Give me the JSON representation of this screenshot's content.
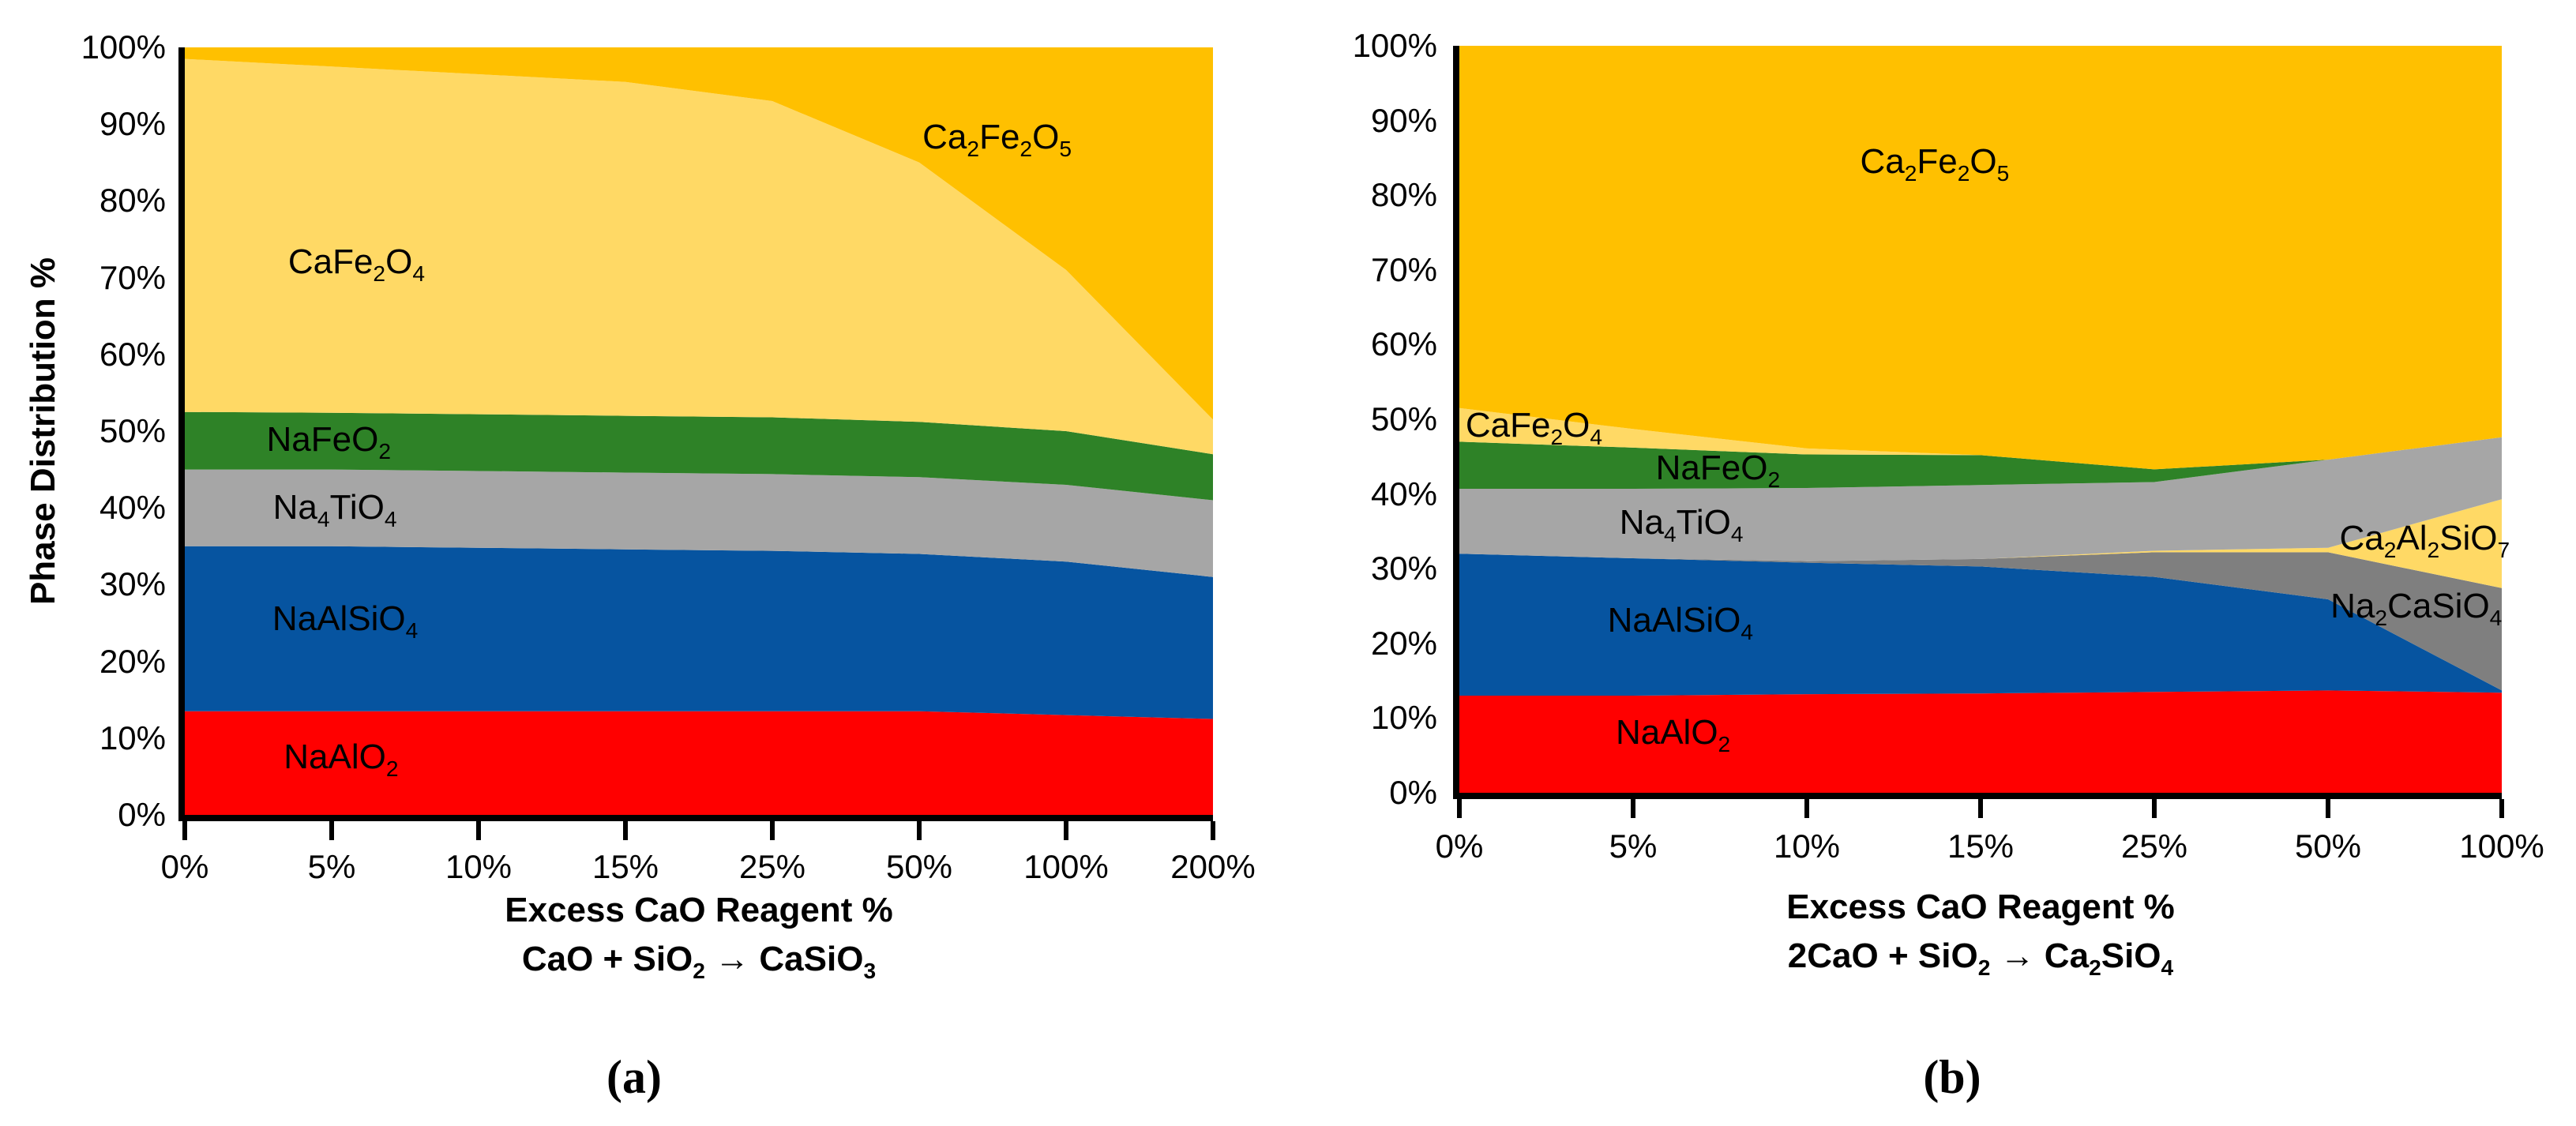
{
  "figure": {
    "background": "#FFFFFF",
    "text_color": "#000000",
    "axis_color": "#000000",
    "y_axis_title": "Phase Distribution %",
    "caption_a": "(a)",
    "caption_b": "(b)"
  },
  "chart_data": [
    {
      "id": "a",
      "type": "area",
      "stacked": true,
      "x_title": "Excess CaO Reagent %",
      "x_subtitle": "CaO + SiO2 → CaSiO3",
      "ylabel": "Phase Distribution %",
      "ylim": [
        0,
        100
      ],
      "grid": false,
      "legend_position": "labels-inside-plot",
      "y_ticks": [
        "0%",
        "10%",
        "20%",
        "30%",
        "40%",
        "50%",
        "60%",
        "70%",
        "80%",
        "90%",
        "100%"
      ],
      "categories": [
        "0%",
        "5%",
        "10%",
        "15%",
        "25%",
        "50%",
        "100%",
        "200%"
      ],
      "series": [
        {
          "name": "NaAlO2",
          "color": "#FF0000",
          "values": [
            13.5,
            13.5,
            13.5,
            13.5,
            13.5,
            13.5,
            13.0,
            12.5
          ]
        },
        {
          "name": "NaAlSiO4",
          "color": "#0654A0",
          "values": [
            21.5,
            21.5,
            21.3,
            21.1,
            20.9,
            20.5,
            20.0,
            18.5
          ]
        },
        {
          "name": "Na4TiO4",
          "color": "#A6A6A6",
          "values": [
            10.0,
            10.0,
            10.0,
            10.0,
            10.0,
            10.0,
            10.0,
            10.0
          ]
        },
        {
          "name": "NaFeO2",
          "color": "#2E8227",
          "values": [
            7.5,
            7.4,
            7.4,
            7.4,
            7.4,
            7.2,
            7.0,
            6.0
          ]
        },
        {
          "name": "CaFe2O4",
          "color": "#FFD965",
          "values": [
            46.0,
            45.1,
            44.3,
            43.5,
            41.2,
            33.8,
            21.0,
            4.5
          ]
        },
        {
          "name": "Ca2Fe2O5",
          "color": "#FFC000",
          "values": [
            1.5,
            2.5,
            3.5,
            4.5,
            7.0,
            15.0,
            29.0,
            48.5
          ]
        }
      ],
      "annotations": [
        {
          "text": "CaFe2O4",
          "x": 0.167,
          "y": 72.0
        },
        {
          "text": "Ca2Fe2O5",
          "x": 0.79,
          "y": 88.3
        },
        {
          "text": "NaFeO2",
          "x": 0.14,
          "y": 48.9
        },
        {
          "text": "Na4TiO4",
          "x": 0.146,
          "y": 40.0
        },
        {
          "text": "NaAlSiO4",
          "x": 0.156,
          "y": 25.5
        },
        {
          "text": "NaAlO2",
          "x": 0.152,
          "y": 7.5
        }
      ]
    },
    {
      "id": "b",
      "type": "area",
      "stacked": true,
      "x_title": "Excess CaO Reagent %",
      "x_subtitle": "2CaO + SiO2 → Ca2SiO4",
      "ylabel": "",
      "ylim": [
        0,
        100
      ],
      "grid": false,
      "legend_position": "labels-inside-plot",
      "y_ticks": [
        "0%",
        "10%",
        "20%",
        "30%",
        "40%",
        "50%",
        "60%",
        "70%",
        "80%",
        "90%",
        "100%"
      ],
      "categories": [
        "0%",
        "5%",
        "10%",
        "15%",
        "25%",
        "50%",
        "100%"
      ],
      "series": [
        {
          "name": "NaAlO2",
          "color": "#FF0000",
          "values": [
            13.0,
            13.0,
            13.2,
            13.3,
            13.5,
            13.7,
            13.4
          ]
        },
        {
          "name": "NaAlSiO4",
          "color": "#0654A0",
          "values": [
            19.0,
            18.4,
            17.6,
            17.0,
            15.4,
            12.2,
            0.3
          ]
        },
        {
          "name": "Na2CaSiO4",
          "color": "#7F7F7F",
          "values": [
            0,
            0,
            0.2,
            1.0,
            3.3,
            6.3,
            13.7
          ]
        },
        {
          "name": "Ca2Al2SiO7",
          "color": "#FFD965",
          "values": [
            0,
            0,
            0,
            0,
            0.2,
            0.6,
            11.9
          ]
        },
        {
          "name": "Na4TiO4",
          "color": "#A6A6A6",
          "values": [
            8.7,
            9.3,
            9.8,
            9.9,
            9.2,
            11.8,
            8.3
          ]
        },
        {
          "name": "NaFeO2",
          "color": "#2E8227",
          "values": [
            6.3,
            5.5,
            4.5,
            4.0,
            1.7,
            0,
            0
          ]
        },
        {
          "name": "CaFe2O4",
          "color": "#FFD965",
          "values": [
            4.5,
            2.5,
            0.8,
            0,
            0,
            0,
            0
          ]
        },
        {
          "name": "Ca2Fe2O5",
          "color": "#FFC000",
          "values": [
            48.5,
            51.3,
            53.9,
            54.8,
            56.7,
            55.4,
            52.4
          ]
        }
      ],
      "annotations": [
        {
          "text": "Ca2Fe2O5",
          "x": 0.456,
          "y": 84.5
        },
        {
          "text": "CaFe2O4",
          "x": 0.006,
          "y": 49.2,
          "anchor": "start"
        },
        {
          "text": "NaFeO2",
          "x": 0.248,
          "y": 43.4
        },
        {
          "text": "Na4TiO4",
          "x": 0.213,
          "y": 36.2
        },
        {
          "text": "NaAlSiO4",
          "x": 0.212,
          "y": 23.0
        },
        {
          "text": "NaAlO2",
          "x": 0.205,
          "y": 8.0
        },
        {
          "text": "Ca2Al2SiO7",
          "x": 0.926,
          "y": 34.0
        },
        {
          "text": "Na2CaSiO4",
          "x": 0.918,
          "y": 25.0
        }
      ]
    }
  ]
}
